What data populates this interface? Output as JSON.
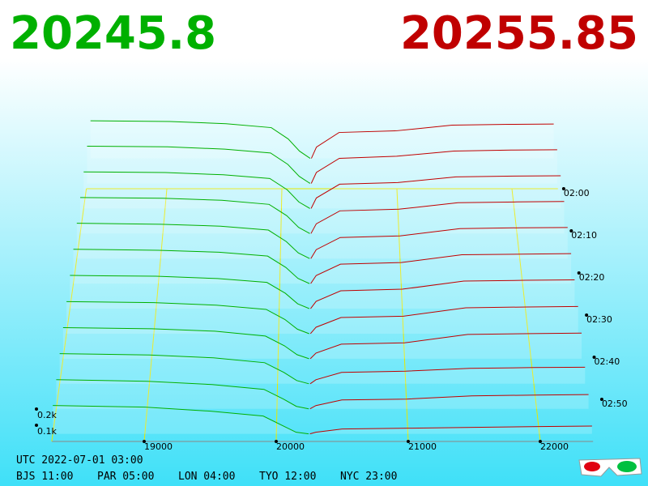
{
  "chart_data": {
    "type": "depth3d",
    "bid_price": 20245.8,
    "ask_price": 20255.85,
    "bid_color": "#00b000",
    "ask_color": "#c00000",
    "grid_color": "#e8e800",
    "xticks": [
      19000,
      20000,
      21000,
      22000
    ],
    "depth_ticks": [
      {
        "value": 100,
        "label": "0.1k"
      },
      {
        "value": 200,
        "label": "0.2k"
      }
    ],
    "time_ticks": [
      "02:00",
      "02:10",
      "02:20",
      "02:30",
      "02:40",
      "02:50"
    ],
    "bid_prices": [
      18300,
      19000,
      19500,
      19900,
      20050,
      20150,
      20245
    ],
    "ask_prices": [
      20255,
      20300,
      20500,
      21000,
      21500,
      22000,
      22400
    ],
    "snapshots": [
      {
        "bids": [
          232,
          228,
          214,
          190,
          120,
          45,
          0
        ],
        "asks": [
          0,
          70,
          160,
          170,
          205,
          210,
          212
        ]
      },
      {
        "bids": [
          230,
          226,
          212,
          188,
          118,
          44,
          0
        ],
        "asks": [
          0,
          68,
          155,
          168,
          200,
          206,
          208
        ]
      },
      {
        "bids": [
          226,
          222,
          208,
          185,
          115,
          40,
          0
        ],
        "asks": [
          0,
          65,
          150,
          160,
          195,
          200,
          202
        ]
      },
      {
        "bids": [
          222,
          218,
          205,
          180,
          110,
          38,
          0
        ],
        "asks": [
          0,
          60,
          140,
          150,
          190,
          195,
          198
        ]
      },
      {
        "bids": [
          218,
          212,
          200,
          176,
          105,
          35,
          0
        ],
        "asks": [
          0,
          55,
          130,
          140,
          185,
          190,
          192
        ]
      },
      {
        "bids": [
          212,
          206,
          194,
          170,
          100,
          32,
          0
        ],
        "asks": [
          0,
          50,
          120,
          130,
          178,
          182,
          185
        ]
      },
      {
        "bids": [
          205,
          200,
          186,
          162,
          95,
          30,
          0
        ],
        "asks": [
          0,
          45,
          110,
          120,
          170,
          175,
          178
        ]
      },
      {
        "bids": [
          198,
          192,
          176,
          150,
          88,
          28,
          0
        ],
        "asks": [
          0,
          40,
          100,
          108,
          160,
          165,
          168
        ]
      },
      {
        "bids": [
          192,
          185,
          170,
          140,
          80,
          25,
          0
        ],
        "asks": [
          0,
          35,
          90,
          98,
          150,
          155,
          158
        ]
      },
      {
        "bids": [
          186,
          178,
          160,
          130,
          70,
          20,
          0
        ],
        "asks": [
          0,
          25,
          70,
          78,
          95,
          100,
          102
        ]
      },
      {
        "bids": [
          180,
          170,
          150,
          120,
          60,
          15,
          0
        ],
        "asks": [
          0,
          20,
          55,
          60,
          80,
          85,
          88
        ]
      },
      {
        "bids": [
          175,
          165,
          140,
          110,
          50,
          10,
          0
        ],
        "asks": [
          0,
          10,
          30,
          35,
          40,
          45,
          48
        ]
      }
    ],
    "utc_label": "UTC 2022-07-01 03:00",
    "city_times": [
      "BJS 11:00",
      "PAR 05:00",
      "LON 04:00",
      "TYO 12:00",
      "NYC 23:00"
    ]
  }
}
